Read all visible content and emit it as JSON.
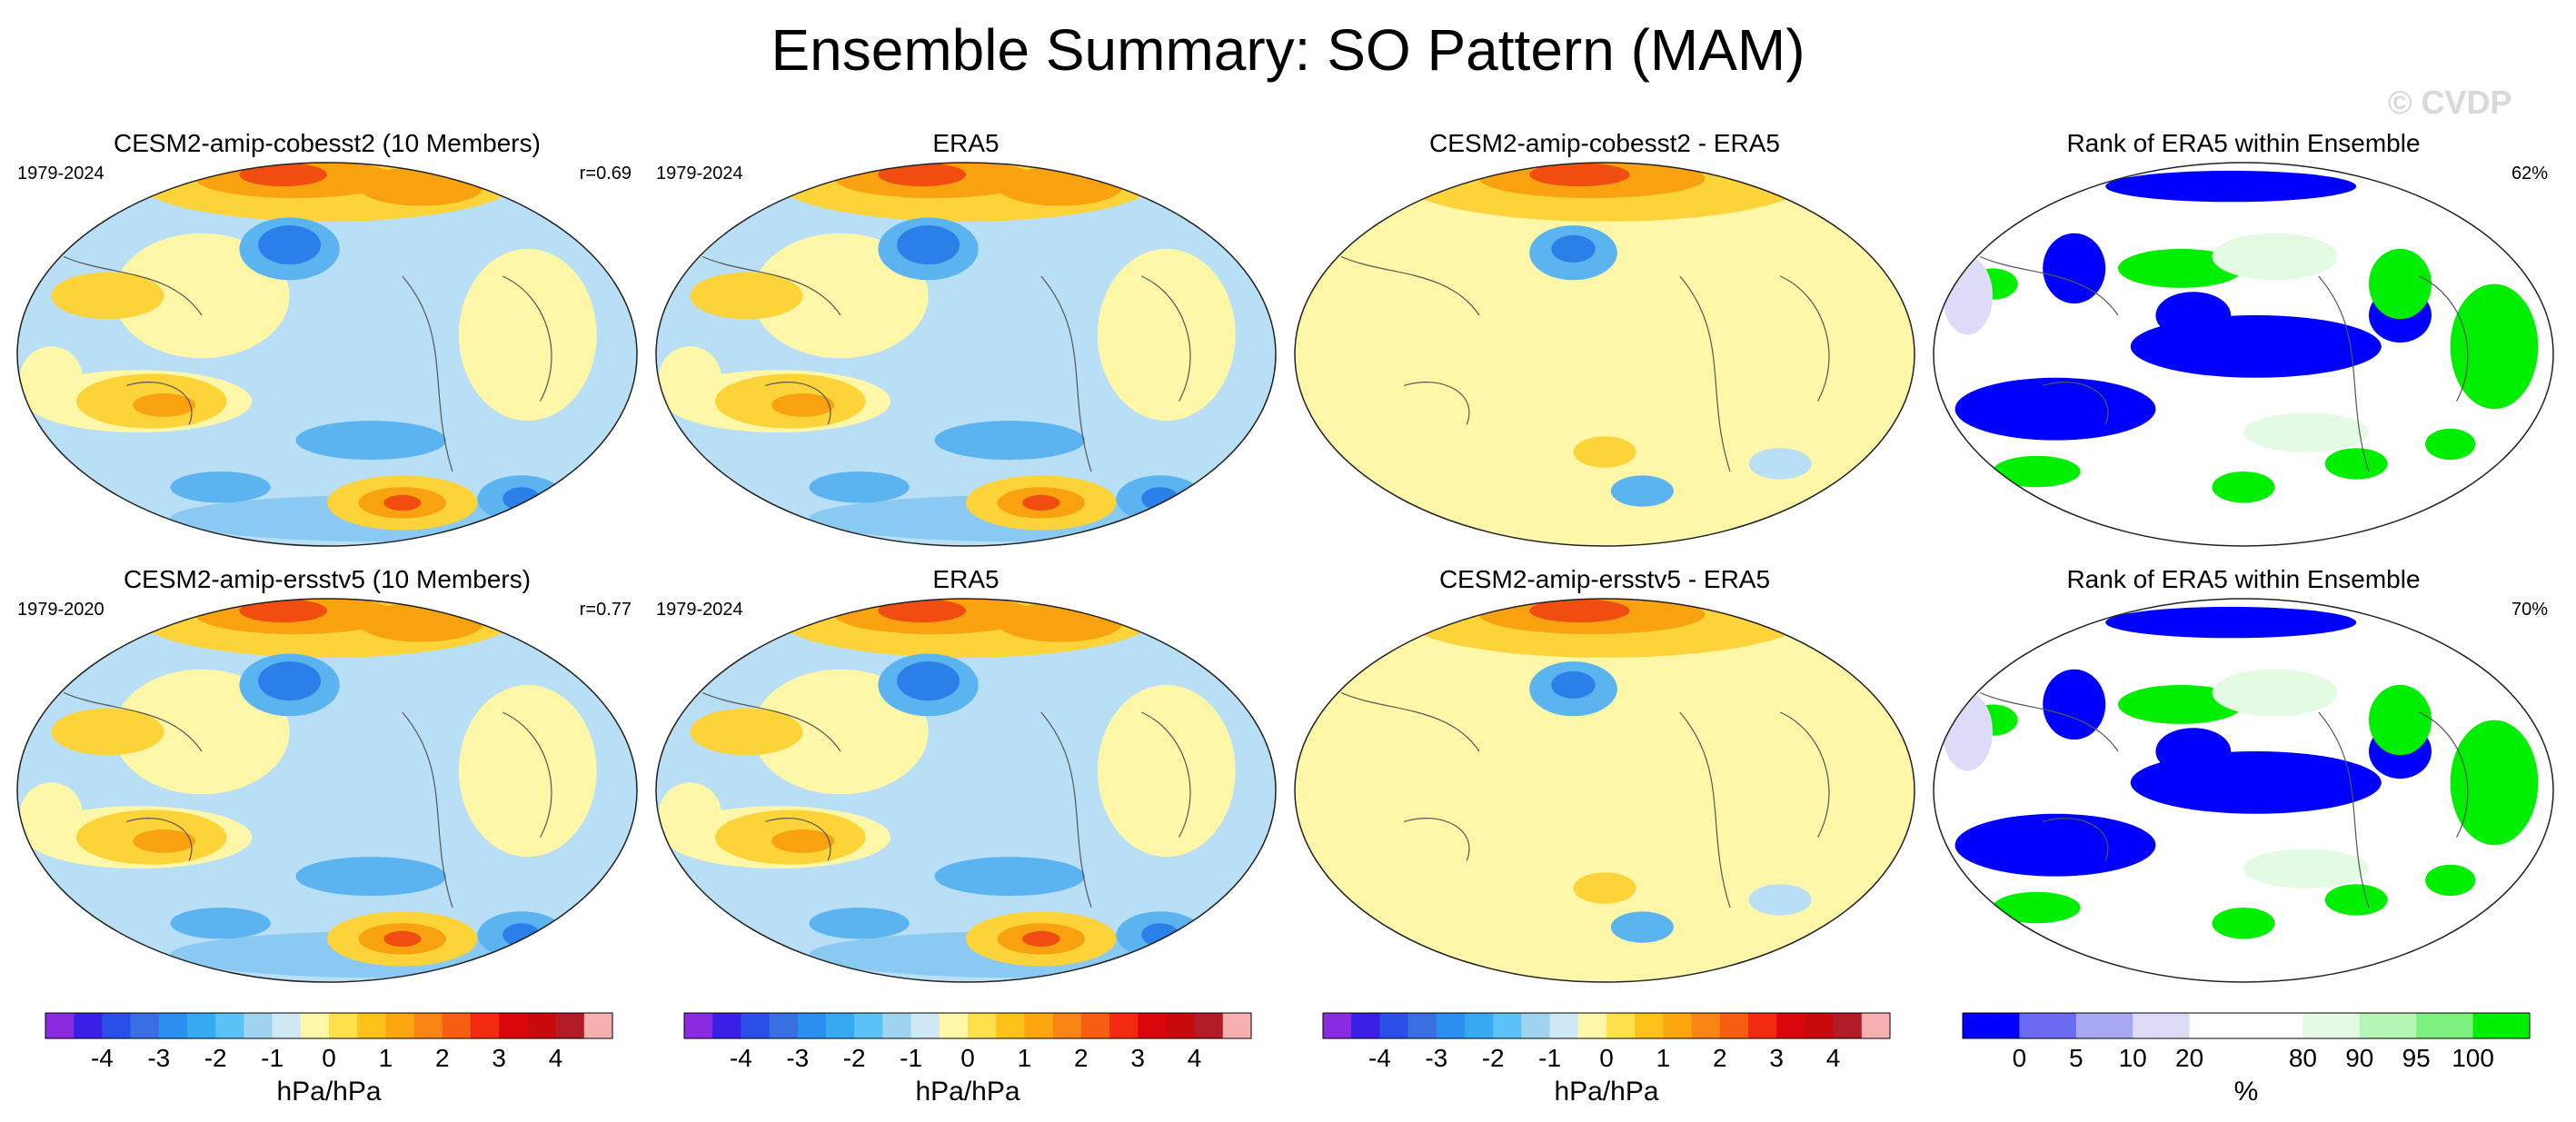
{
  "title": "Ensemble Summary: SO Pattern (MAM)",
  "watermark": "© CVDP",
  "rows": [
    {
      "panels": [
        {
          "title": "CESM2-amip-cobesst2 (10 Members)",
          "left_label": "1979-2024",
          "right_label": "r=0.69",
          "kind": "field"
        },
        {
          "title": "ERA5",
          "left_label": "1979-2024",
          "right_label": "",
          "kind": "field"
        },
        {
          "title": "CESM2-amip-cobesst2 - ERA5",
          "left_label": "",
          "right_label": "",
          "kind": "diff"
        },
        {
          "title": "Rank of ERA5 within Ensemble",
          "left_label": "",
          "right_label": "62%",
          "kind": "rank"
        }
      ]
    },
    {
      "panels": [
        {
          "title": "CESM2-amip-ersstv5 (10 Members)",
          "left_label": "1979-2020",
          "right_label": "r=0.77",
          "kind": "field"
        },
        {
          "title": "ERA5",
          "left_label": "1979-2024",
          "right_label": "",
          "kind": "field"
        },
        {
          "title": "CESM2-amip-ersstv5 - ERA5",
          "left_label": "",
          "right_label": "",
          "kind": "diff"
        },
        {
          "title": "Rank of ERA5 within Ensemble",
          "left_label": "",
          "right_label": "70%",
          "kind": "rank"
        }
      ]
    }
  ],
  "colorbars": {
    "pressure": {
      "unit": "hPa/hPa",
      "ticks": [
        "-4",
        "-3",
        "-2",
        "-1",
        "0",
        "1",
        "2",
        "3",
        "4"
      ],
      "colors": [
        "#8a2be2",
        "#3a1fe6",
        "#2a4fe8",
        "#3a6fe4",
        "#2a8ff0",
        "#33aaf2",
        "#5ac2f4",
        "#9fd3ee",
        "#cfe8f6",
        "#fff7a8",
        "#fee04a",
        "#fcc21a",
        "#fba50f",
        "#f98614",
        "#f75e10",
        "#f22a0f",
        "#d9070c",
        "#c70a0c",
        "#b31b27",
        "#f7b0b0"
      ]
    },
    "rank": {
      "unit": "%",
      "ticks": [
        "0",
        "5",
        "10",
        "20",
        "80",
        "90",
        "95",
        "100"
      ],
      "colors": [
        "#0000ff",
        "#6a6af2",
        "#a8a8f2",
        "#dcdcf8",
        "#ffffff",
        "#ffffff",
        "#e2fbe2",
        "#b5f5b5",
        "#7ef07e",
        "#00ee00"
      ]
    }
  },
  "map_colors": {
    "pos_light": "#fff7a8",
    "pos_mid": "#fcd43a",
    "pos_strong": "#f9a20f",
    "pos_max": "#f24d10",
    "neg_light": "#b8dff5",
    "neg_mid": "#5bb4f0",
    "neg_strong": "#2a7fe8",
    "rank_low": "#0000ff",
    "rank_high": "#00ee00",
    "rank_lav": "#dcdcf8",
    "rank_mint": "#e2fbe2"
  }
}
